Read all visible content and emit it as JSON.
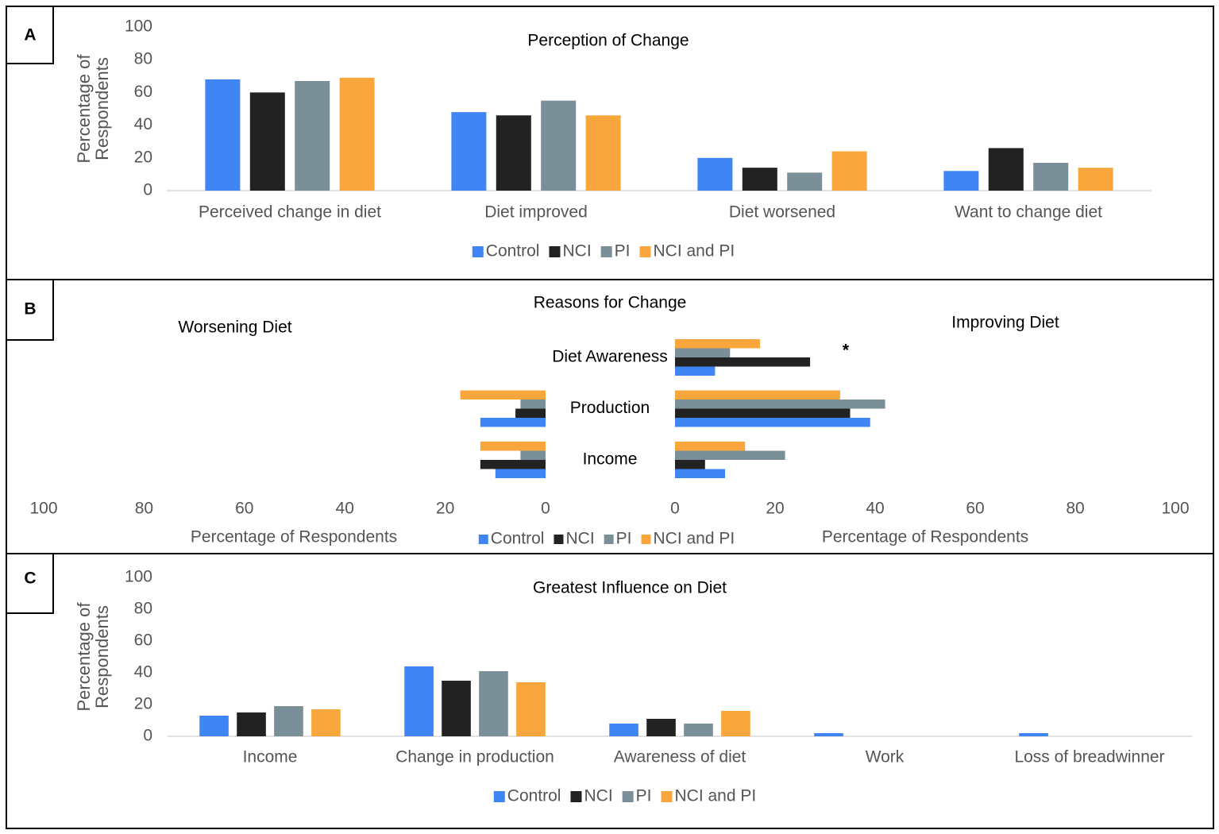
{
  "chart_data": [
    {
      "type": "bar",
      "panel": "A",
      "title": "Perception of Change",
      "ylabel": "Percentage of Respondents",
      "categories": [
        "Perceived change in diet",
        "Diet improved",
        "Diet worsened",
        "Want to change diet"
      ],
      "series": [
        {
          "name": "Control",
          "color": "#3f86f4",
          "values": [
            68,
            48,
            20,
            12
          ]
        },
        {
          "name": "NCI",
          "color": "#222222",
          "values": [
            60,
            46,
            14,
            26
          ]
        },
        {
          "name": "PI",
          "color": "#7b8f99",
          "values": [
            67,
            55,
            11,
            17
          ]
        },
        {
          "name": "NCI and PI",
          "color": "#f9a73d",
          "values": [
            69,
            46,
            24,
            14
          ]
        }
      ],
      "ylim": [
        0,
        100
      ],
      "yticks": [
        0,
        20,
        40,
        60,
        80,
        100
      ],
      "grid": false,
      "legend": "bottom"
    },
    {
      "type": "diverging_bar",
      "panel": "B",
      "title": "Reasons for Change",
      "annotation": "*",
      "categories": [
        "Diet Awareness",
        "Production",
        "Income"
      ],
      "left": {
        "title": "Worsening Diet",
        "xlabel": "Percentage of Respondents",
        "xlim": [
          0,
          100
        ],
        "xticks": [
          0,
          20,
          40,
          60,
          80,
          100
        ]
      },
      "right": {
        "title": "Improving Diet",
        "xlabel": "Percentage of Respondents",
        "xlim": [
          0,
          100
        ],
        "xticks": [
          0,
          20,
          40,
          60,
          80,
          100
        ]
      },
      "series": [
        {
          "name": "Control",
          "color": "#3f86f4",
          "worsening": [
            0,
            13,
            10
          ],
          "improving": [
            8,
            39,
            10
          ]
        },
        {
          "name": "NCI",
          "color": "#222222",
          "worsening": [
            0,
            6,
            13
          ],
          "improving": [
            27,
            35,
            6
          ]
        },
        {
          "name": "PI",
          "color": "#7b8f99",
          "worsening": [
            0,
            5,
            5
          ],
          "improving": [
            11,
            42,
            22
          ]
        },
        {
          "name": "NCI and PI",
          "color": "#f9a73d",
          "worsening": [
            0,
            17,
            13
          ],
          "improving": [
            17,
            33,
            14
          ]
        }
      ],
      "legend": "bottom"
    },
    {
      "type": "bar",
      "panel": "C",
      "title": "Greatest Influence on Diet",
      "ylabel": "Percentage of Respondents",
      "categories": [
        "Income",
        "Change in production",
        "Awareness of diet",
        "Work",
        "Loss of breadwinner"
      ],
      "series": [
        {
          "name": "Control",
          "color": "#3f86f4",
          "values": [
            13,
            44,
            8,
            2,
            2
          ]
        },
        {
          "name": "NCI",
          "color": "#222222",
          "values": [
            15,
            35,
            11,
            0,
            0
          ]
        },
        {
          "name": "PI",
          "color": "#7b8f99",
          "values": [
            19,
            41,
            8,
            0,
            0
          ]
        },
        {
          "name": "NCI and PI",
          "color": "#f9a73d",
          "values": [
            17,
            34,
            16,
            0,
            0
          ]
        }
      ],
      "ylim": [
        0,
        100
      ],
      "yticks": [
        0,
        20,
        40,
        60,
        80,
        100
      ],
      "grid": false,
      "legend": "bottom"
    }
  ]
}
